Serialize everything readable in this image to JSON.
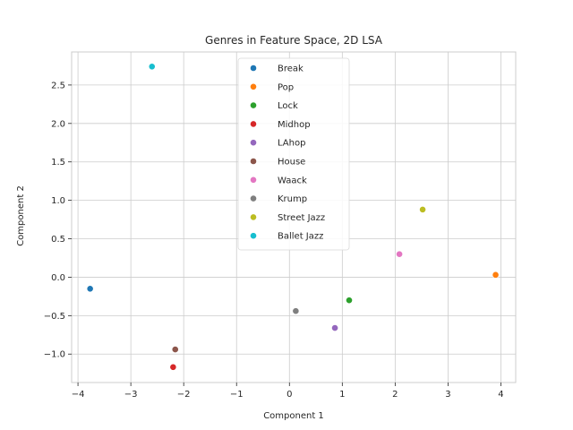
{
  "chart_data": {
    "type": "scatter",
    "title": "Genres in Feature Space, 2D LSA",
    "xlabel": "Component 1",
    "ylabel": "Component 2",
    "xlim": [
      -4.12,
      4.28
    ],
    "ylim": [
      -1.37,
      2.93
    ],
    "xticks": [
      -4,
      -3,
      -2,
      -1,
      0,
      1,
      2,
      3,
      4
    ],
    "xtick_labels": [
      "−4",
      "−3",
      "−2",
      "−1",
      "0",
      "1",
      "2",
      "3",
      "4"
    ],
    "yticks": [
      -1.0,
      -0.5,
      0.0,
      0.5,
      1.0,
      1.5,
      2.0,
      2.5
    ],
    "ytick_labels": [
      "−1.0",
      "−0.5",
      "0.0",
      "0.5",
      "1.0",
      "1.5",
      "2.0",
      "2.5"
    ],
    "grid": true,
    "legend_position": "upper-center",
    "series": [
      {
        "name": "Break",
        "color": "#1f77b4",
        "x": -3.77,
        "y": -0.15
      },
      {
        "name": "Pop",
        "color": "#ff7f0e",
        "x": 3.9,
        "y": 0.03
      },
      {
        "name": "Lock",
        "color": "#2ca02c",
        "x": 1.13,
        "y": -0.3
      },
      {
        "name": "Midhop",
        "color": "#d62728",
        "x": -2.2,
        "y": -1.17
      },
      {
        "name": "LAhop",
        "color": "#9467bd",
        "x": 0.86,
        "y": -0.66
      },
      {
        "name": "House",
        "color": "#8c564b",
        "x": -2.16,
        "y": -0.94
      },
      {
        "name": "Waack",
        "color": "#e377c2",
        "x": 2.08,
        "y": 0.3
      },
      {
        "name": "Krump",
        "color": "#7f7f7f",
        "x": 0.12,
        "y": -0.44
      },
      {
        "name": "Street Jazz",
        "color": "#bcbd22",
        "x": 2.52,
        "y": 0.88
      },
      {
        "name": "Ballet Jazz",
        "color": "#17becf",
        "x": -2.6,
        "y": 2.74
      }
    ]
  }
}
